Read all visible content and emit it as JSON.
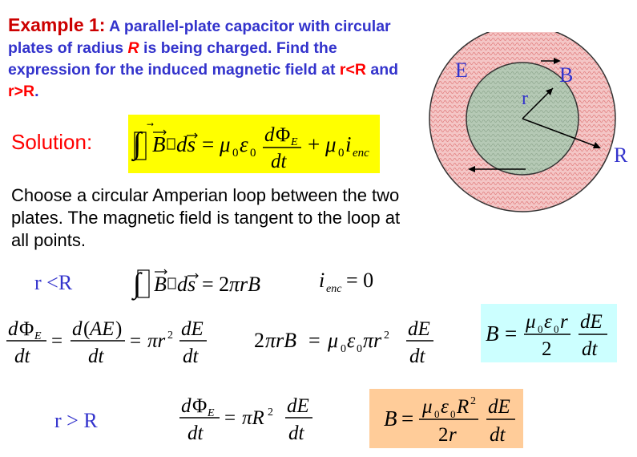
{
  "intro": {
    "example_label": "Example 1:",
    "text_1": " A parallel-plate capacitor with circular plates of radius ",
    "radius_symbol": "R",
    "text_2": " is being charged. Find the expression for the induced magnetic field at ",
    "cond_1": "r<R",
    "text_3": " and ",
    "cond_2": "r>R",
    "text_4": "."
  },
  "solution_label": "Solution:",
  "paragraph": "Choose a circular Amperian loop between the two plates. The magnetic field is tangent to the loop at all points.",
  "diagram": {
    "label_E": "E",
    "label_B": "B",
    "label_r": "r",
    "label_R": "R",
    "colors": {
      "outer_fill": "#f4c6c6",
      "outer_hatch": "#e07a7a",
      "inner_fill": "#b5c9b5",
      "inner_hatch": "#8fa88f",
      "label_color": "#3333cc"
    }
  },
  "equations": {
    "case_lt": "r <R",
    "case_gt": "r > R",
    "ienc_zero": "= 0",
    "b_inner_result": "B = μ0ε0r/2 · dE/dt",
    "b_outer_result": "B = μ0ε0R²/2r · dE/dt"
  }
}
